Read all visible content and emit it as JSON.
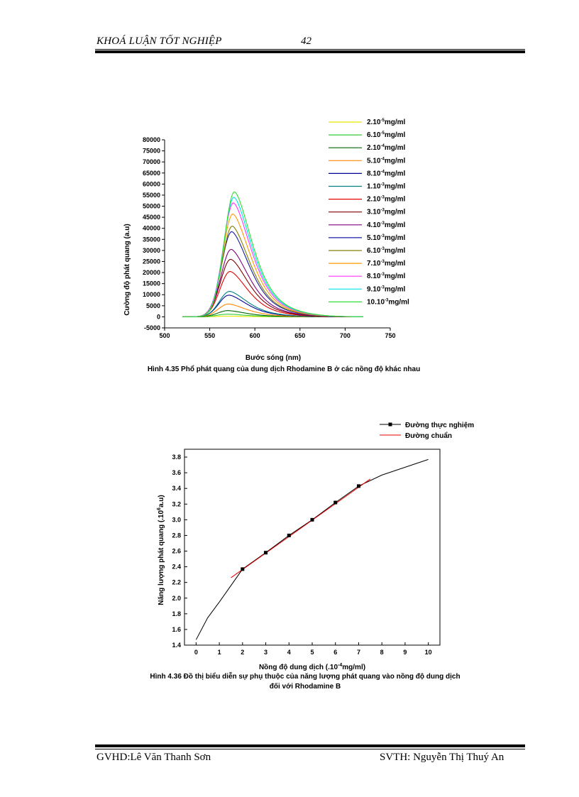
{
  "header": {
    "title": "KHOÁ LUẬN TỐT NGHIỆP",
    "page_number": "42"
  },
  "footer": {
    "left": "GVHD:Lê  Văn Thanh Sơn",
    "right": "SVTH:  Nguyễn  Thị Thuý An"
  },
  "figure1": {
    "caption": "Hình 4.35 Phổ phát quang của dung dịch Rhodamine B ở các nồng độ khác nhau",
    "chart_data": {
      "type": "line",
      "title": "",
      "xlabel": "Bước sóng (nm)",
      "ylabel": "Cường độ phát quang (a.u)",
      "xlim": [
        500,
        750
      ],
      "ylim": [
        -5000,
        80000
      ],
      "x_ticks": [
        "500",
        "550",
        "600",
        "650",
        "700",
        "750"
      ],
      "y_ticks": [
        "-5000",
        "0",
        "5000",
        "10000",
        "15000",
        "20000",
        "25000",
        "30000",
        "35000",
        "40000",
        "45000",
        "50000",
        "55000",
        "60000",
        "65000",
        "70000",
        "75000",
        "80000"
      ],
      "peak_wavelength_nm": 573,
      "series": [
        {
          "name": "2.10",
          "exp": "-5",
          "unit": "mg/ml",
          "color": "#e6e600",
          "peak": 300
        },
        {
          "name": "6.10",
          "exp": "-5",
          "unit": "mg/ml",
          "color": "#33cc33",
          "peak": 1200
        },
        {
          "name": "2.10",
          "exp": "-4",
          "unit": "mg/ml",
          "color": "#006600",
          "peak": 2800
        },
        {
          "name": "5.10",
          "exp": "-4",
          "unit": "mg/ml",
          "color": "#ff8800",
          "peak": 5800
        },
        {
          "name": "8.10",
          "exp": "-4",
          "unit": "mg/ml",
          "color": "#000099",
          "peak": 9800
        },
        {
          "name": "1.10",
          "exp": "-3",
          "unit": "mg/ml",
          "color": "#008080",
          "peak": 11500
        },
        {
          "name": "2.10",
          "exp": "-3",
          "unit": "mg/ml",
          "color": "#e60000",
          "peak": 20500
        },
        {
          "name": "3.10",
          "exp": "-3",
          "unit": "mg/ml",
          "color": "#800000",
          "peak": 26000
        },
        {
          "name": "4.10",
          "exp": "-3",
          "unit": "mg/ml",
          "color": "#800080",
          "peak": 30500
        },
        {
          "name": "5.10",
          "exp": "-3",
          "unit": "mg/ml",
          "color": "#1a1aa6",
          "peak": 38500
        },
        {
          "name": "6.10",
          "exp": "-3",
          "unit": "mg/ml",
          "color": "#808000",
          "peak": 41000
        },
        {
          "name": "7.10",
          "exp": "-3",
          "unit": "mg/ml",
          "color": "#ff9900",
          "peak": 46500
        },
        {
          "name": "8.10",
          "exp": "-3",
          "unit": "mg/ml",
          "color": "#ff33ff",
          "peak": 51500
        },
        {
          "name": "9.10",
          "exp": "-3",
          "unit": "mg/ml",
          "color": "#00e6e6",
          "peak": 54000
        },
        {
          "name": "10.10",
          "exp": "-3",
          "unit": "mg/ml",
          "color": "#33dd33",
          "peak": 56500
        }
      ]
    }
  },
  "figure2": {
    "caption_line1": "Hình 4.36 Đồ thị biểu diễn sự phụ thuộc của năng lượng phát quang vào nồng độ dung dịch",
    "caption_line2": "đối với Rhodamine B",
    "chart_data": {
      "type": "line",
      "xlabel_pre": "Nồng độ dung dịch (.10",
      "xlabel_exp": "-4",
      "xlabel_post": "mg/ml)",
      "ylabel_pre": "Năng lượng phát quang (.10",
      "ylabel_exp": "6",
      "ylabel_post": "a.u)",
      "xlim": [
        -0.5,
        10.5
      ],
      "ylim": [
        1.4,
        3.9
      ],
      "x_ticks": [
        "0",
        "1",
        "2",
        "3",
        "4",
        "5",
        "6",
        "7",
        "8",
        "9",
        "10"
      ],
      "y_ticks": [
        "1.4",
        "1.6",
        "1.8",
        "2.0",
        "2.2",
        "2.4",
        "2.6",
        "2.8",
        "3.0",
        "3.2",
        "3.4",
        "3.6",
        "3.8"
      ],
      "series": [
        {
          "name": "Đường thực nghiệm",
          "color": "#000000",
          "x": [
            0,
            0.5,
            1,
            2,
            3,
            4,
            5,
            6,
            7,
            8,
            9,
            10
          ],
          "y": [
            1.47,
            1.75,
            1.95,
            2.37,
            2.58,
            2.8,
            3.0,
            3.22,
            3.43,
            3.57,
            3.67,
            3.77
          ],
          "markers_x": [
            2,
            3,
            4,
            5,
            6,
            7
          ],
          "markers_y": [
            2.37,
            2.58,
            2.8,
            3.0,
            3.22,
            3.43
          ]
        },
        {
          "name": "Đường chuẩn",
          "color": "#e60000",
          "x": [
            1.5,
            7.5
          ],
          "y": [
            2.26,
            3.52
          ]
        }
      ]
    }
  }
}
